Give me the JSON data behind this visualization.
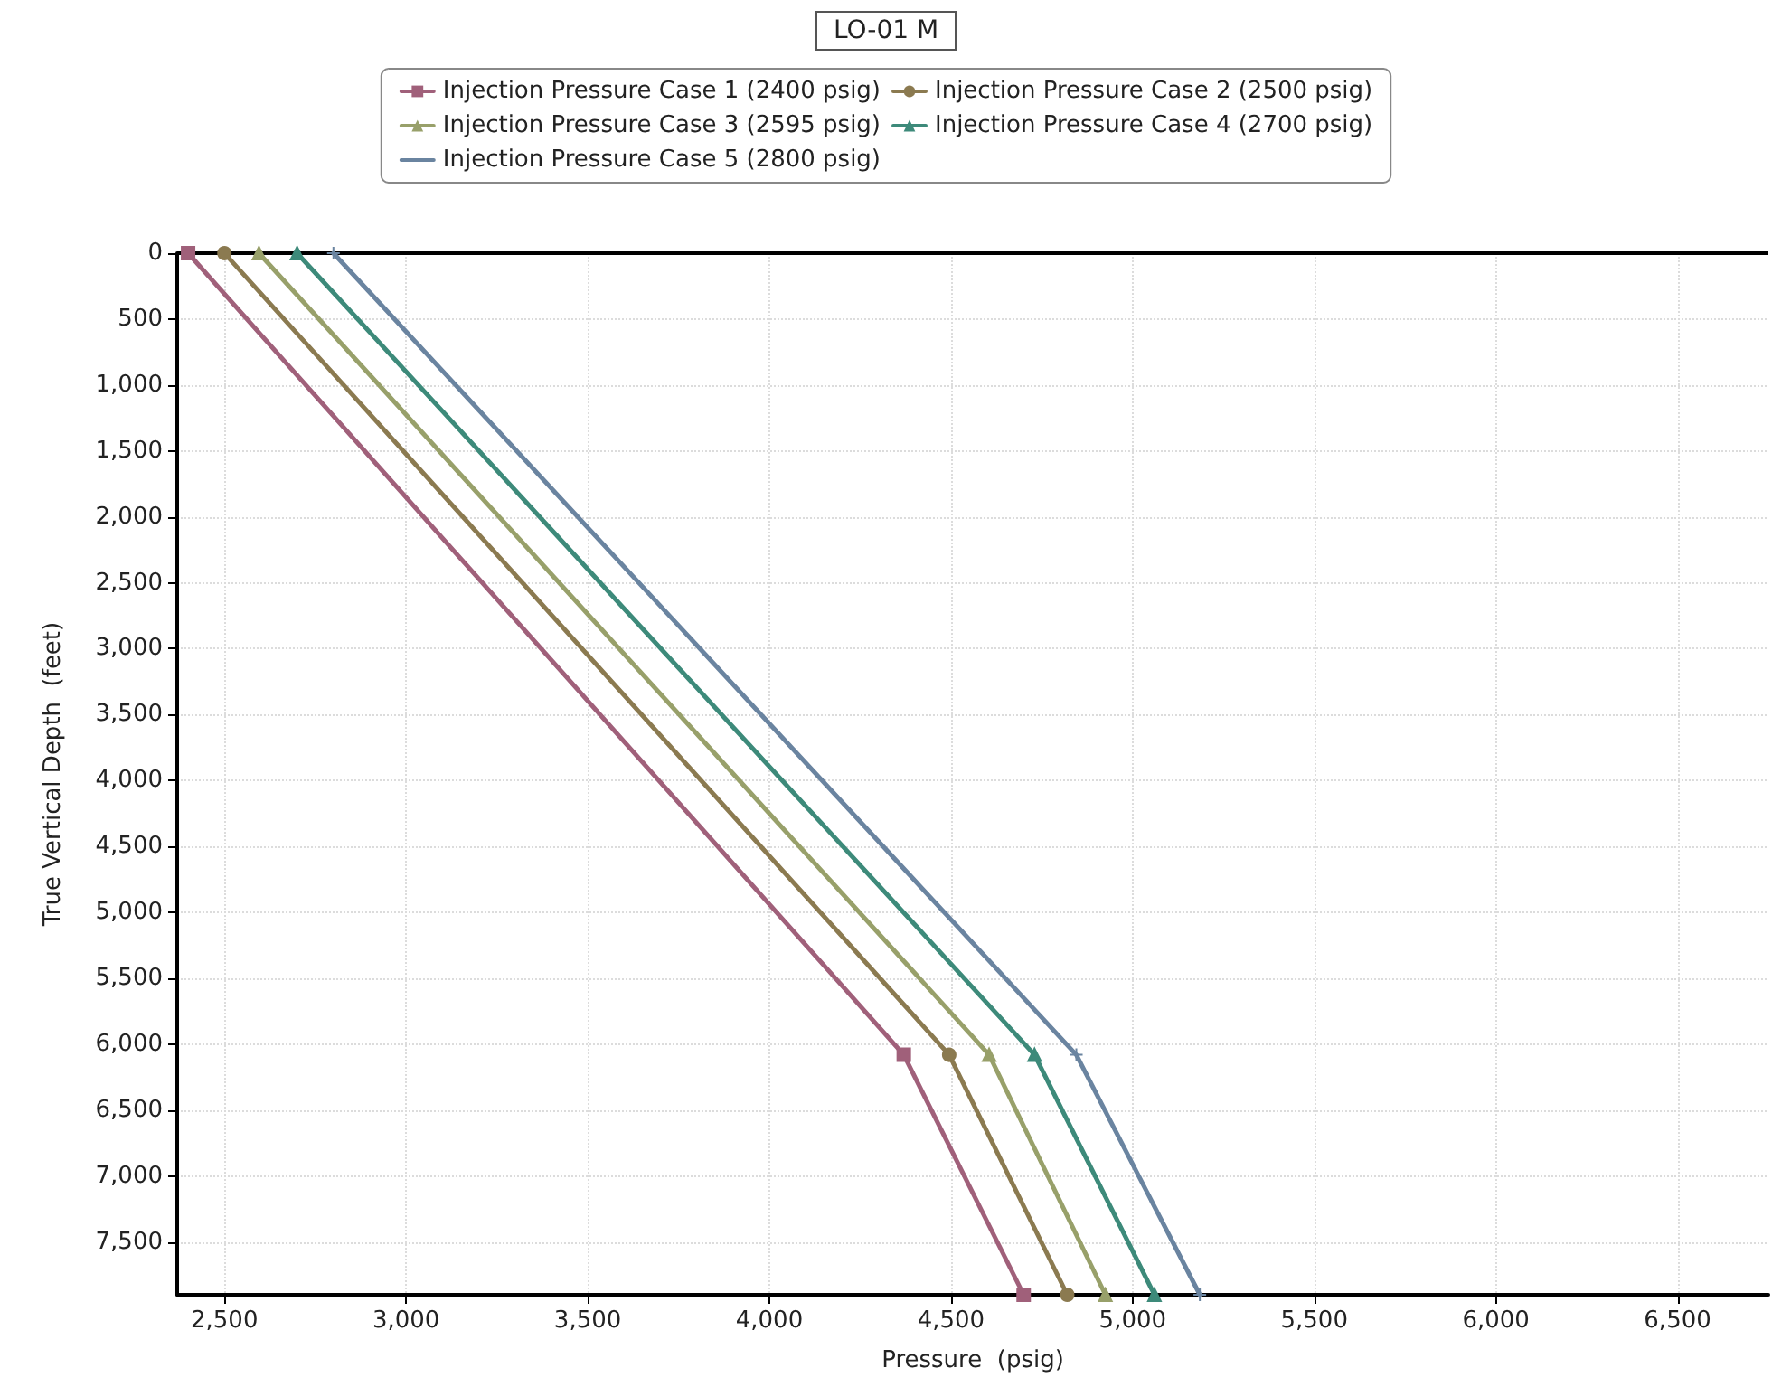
{
  "chart_data": {
    "type": "line",
    "title": "LO-01 M",
    "xlabel": "Pressure  (psig)",
    "ylabel": "True Vertical Depth  (feet)",
    "xlim": [
      2370,
      6750
    ],
    "xticks": [
      {
        "value": 2500,
        "label": "2,500"
      },
      {
        "value": 3000,
        "label": "3,000"
      },
      {
        "value": 3500,
        "label": "3,500"
      },
      {
        "value": 4000,
        "label": "4,000"
      },
      {
        "value": 4500,
        "label": "4,500"
      },
      {
        "value": 5000,
        "label": "5,000"
      },
      {
        "value": 5500,
        "label": "5,500"
      },
      {
        "value": 6000,
        "label": "6,000"
      },
      {
        "value": 6500,
        "label": "6,500"
      }
    ],
    "ylim": [
      7900,
      0
    ],
    "yticks": [
      0,
      500,
      {
        "value": 1000,
        "label": "1,000"
      },
      {
        "value": 1500,
        "label": "1,500"
      },
      {
        "value": 2000,
        "label": "2,000"
      },
      {
        "value": 2500,
        "label": "2,500"
      },
      {
        "value": 3000,
        "label": "3,000"
      },
      {
        "value": 3500,
        "label": "3,500"
      },
      {
        "value": 4000,
        "label": "4,000"
      },
      {
        "value": 4500,
        "label": "4,500"
      },
      {
        "value": 5000,
        "label": "5,000"
      },
      {
        "value": 5500,
        "label": "5,500"
      },
      {
        "value": 6000,
        "label": "6,000"
      },
      {
        "value": 6500,
        "label": "6,500"
      },
      {
        "value": 7000,
        "label": "7,000"
      },
      {
        "value": 7500,
        "label": "7,500"
      }
    ],
    "grid": true,
    "legend": "top",
    "line_style": "solid",
    "series": [
      {
        "name": "Injection Pressure Case 1 (2400 psig)",
        "color": "#a0607a",
        "marker": "square",
        "x": [
          2400,
          4370,
          4700
        ],
        "values": [
          0,
          6080,
          7900
        ]
      },
      {
        "name": "Injection Pressure Case 2 (2500 psig)",
        "color": "#8b7a50",
        "marker": "circle",
        "x": [
          2500,
          4495,
          4820
        ],
        "values": [
          0,
          6080,
          7900
        ]
      },
      {
        "name": "Injection Pressure Case 3 (2595 psig)",
        "color": "#98a06a",
        "marker": "triangle",
        "x": [
          2595,
          4605,
          4925
        ],
        "values": [
          0,
          6080,
          7900
        ]
      },
      {
        "name": "Injection Pressure Case 4 (2700 psig)",
        "color": "#3d8a7a",
        "marker": "triangle",
        "x": [
          2700,
          4730,
          5060
        ],
        "values": [
          0,
          6080,
          7900
        ]
      },
      {
        "name": "Injection Pressure Case 5 (2800 psig)",
        "color": "#6a84a0",
        "marker": "cross",
        "x": [
          2800,
          4845,
          5185
        ],
        "values": [
          0,
          6080,
          7900
        ]
      }
    ]
  }
}
